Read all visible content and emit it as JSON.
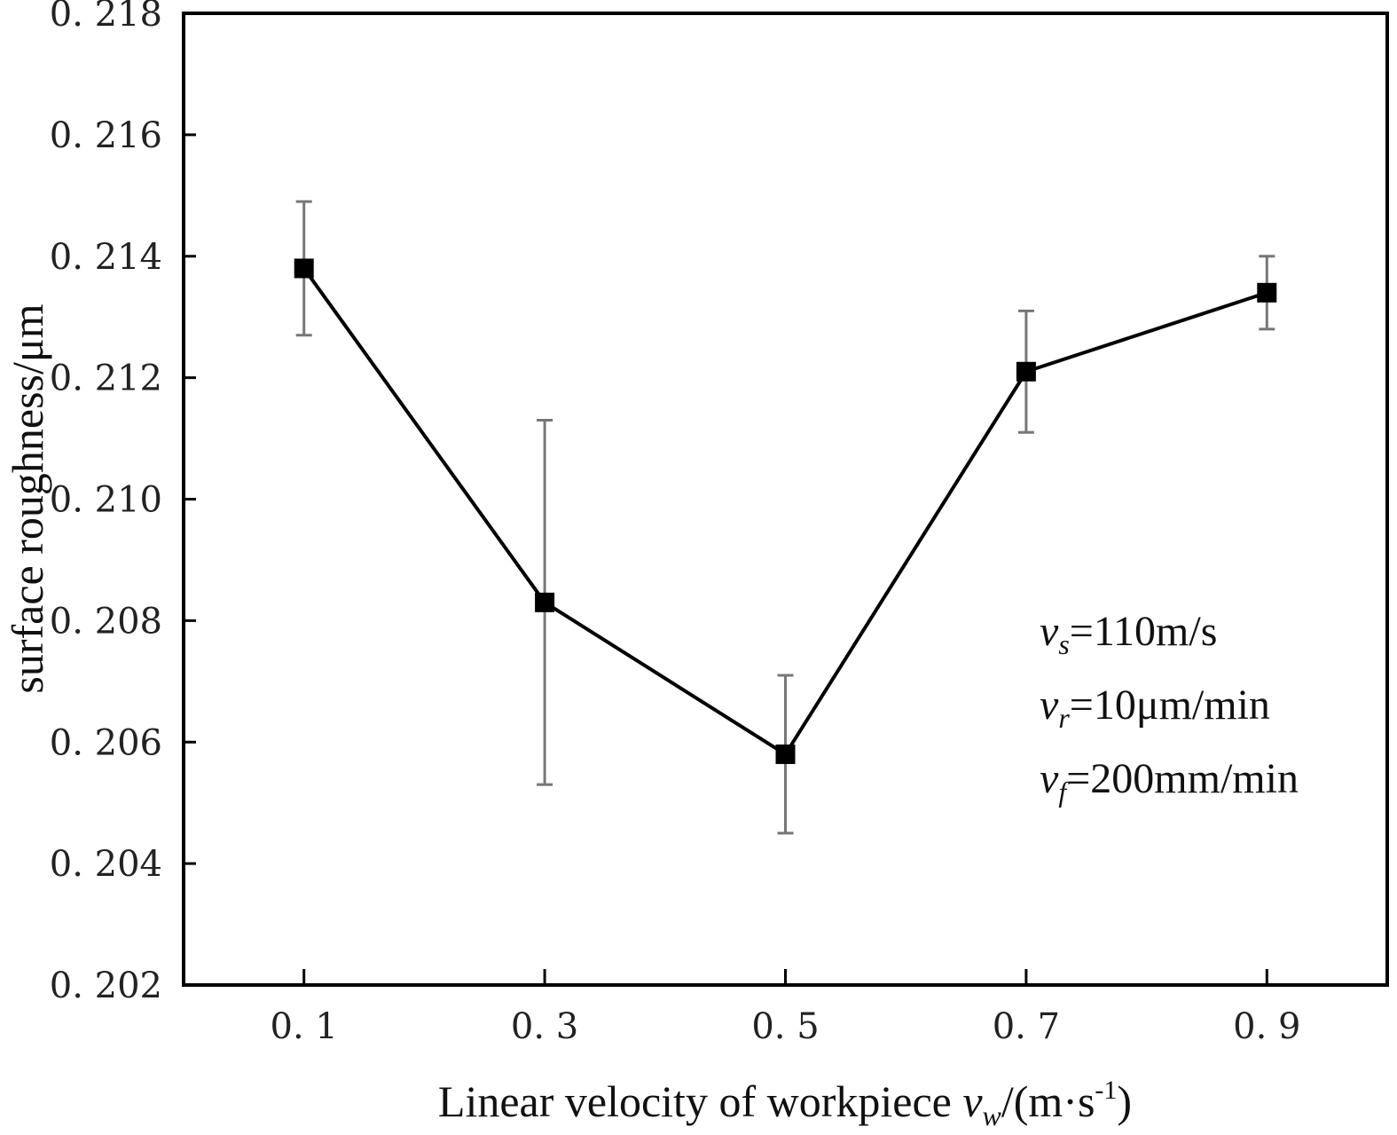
{
  "chart_data": {
    "type": "line",
    "title": "",
    "xlabel": {
      "prefix": "Linear velocity of workpiece ",
      "var": "v",
      "var_sub": "w",
      "unit_open": "/(m·s",
      "unit_sup": "-1",
      "unit_close": ")"
    },
    "ylabel": "surface roughness/μm",
    "x": [
      0.1,
      0.3,
      0.5,
      0.7,
      0.9
    ],
    "x_tick_labels": [
      "0. 1",
      "0. 3",
      "0. 5",
      "0. 7",
      "0. 9"
    ],
    "xlim": [
      0.0,
      1.0
    ],
    "ylim": [
      0.202,
      0.218
    ],
    "y_ticks": [
      0.202,
      0.204,
      0.206,
      0.208,
      0.21,
      0.212,
      0.214,
      0.216,
      0.218
    ],
    "y_tick_labels": [
      "0. 202",
      "0. 204",
      "0. 206",
      "0. 208",
      "0. 210",
      "0. 212",
      "0. 214",
      "0. 216",
      "0. 218"
    ],
    "series": [
      {
        "values": [
          0.2138,
          0.2083,
          0.2058,
          0.2121,
          0.2134
        ],
        "error_low": [
          0.2127,
          0.2053,
          0.2045,
          0.2111,
          0.2128
        ],
        "error_high": [
          0.2149,
          0.2113,
          0.2071,
          0.2131,
          0.214
        ],
        "marker": "square",
        "color": "#000000"
      }
    ],
    "grid": false,
    "annotations": [
      {
        "var": "v",
        "sub": "s",
        "text": "=110m/s"
      },
      {
        "var": "v",
        "sub": "r",
        "text": "=10μm/min"
      },
      {
        "var": "v",
        "sub": "f",
        "text": "=200mm/min"
      }
    ]
  }
}
